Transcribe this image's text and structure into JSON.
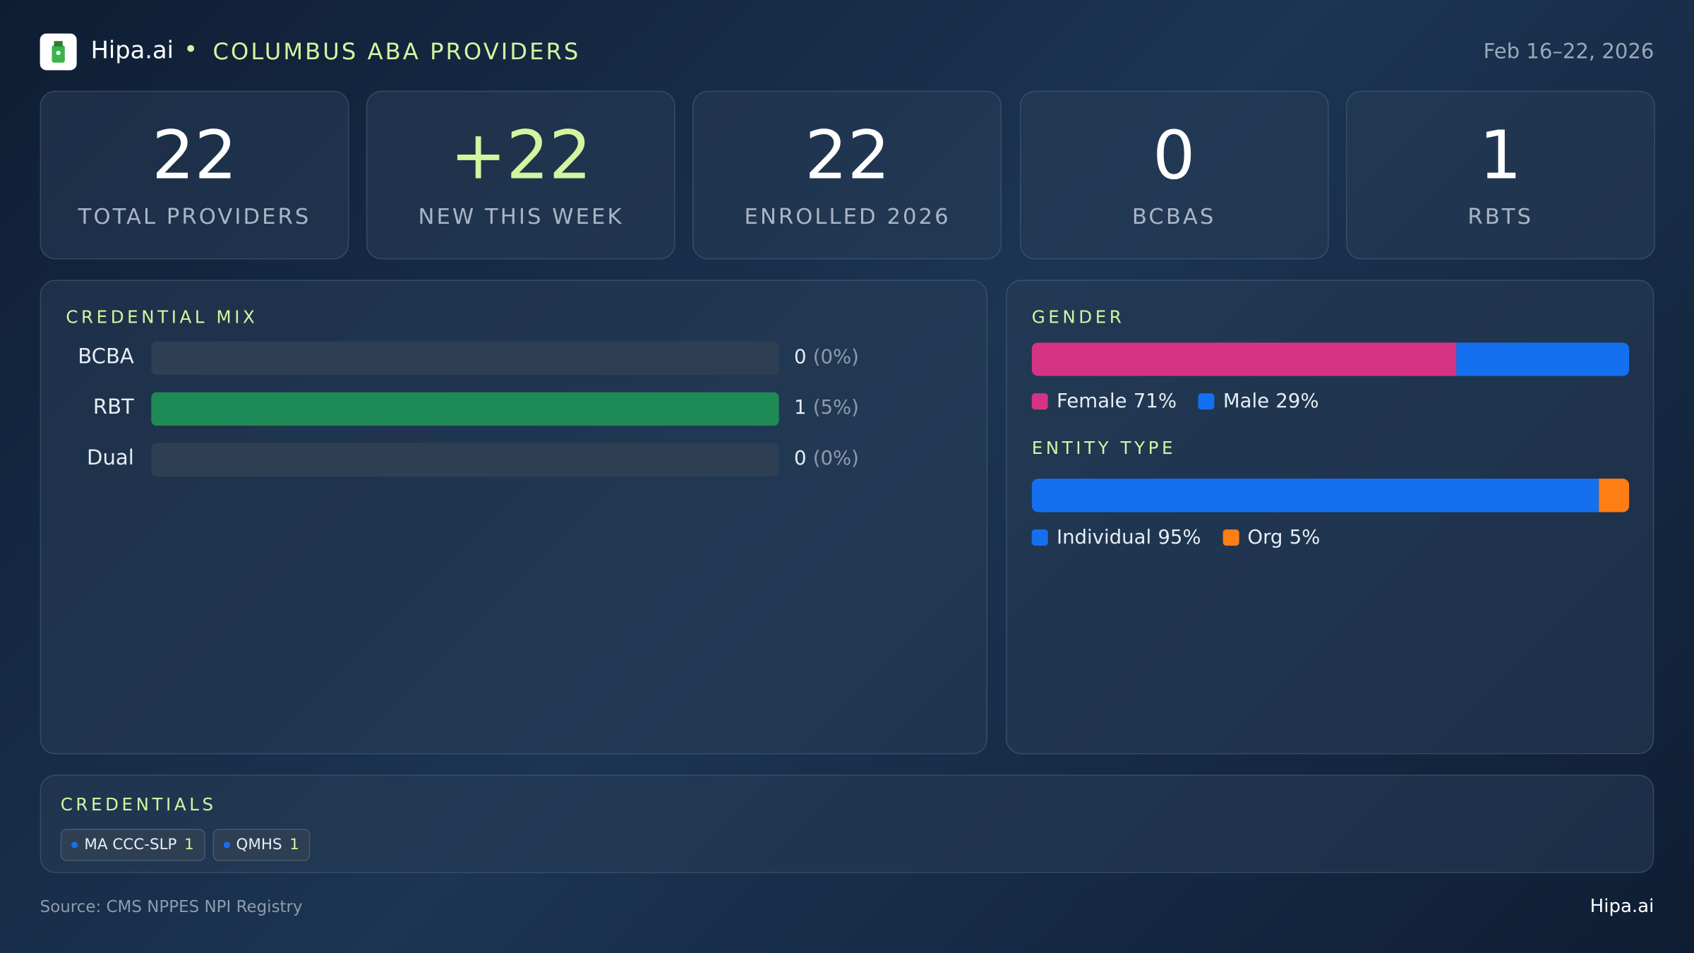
{
  "header": {
    "brand": "Hipa.ai",
    "title": "COLUMBUS ABA PROVIDERS",
    "date": "Feb 16–22, 2026"
  },
  "kpis": [
    {
      "value": "22",
      "label": "TOTAL PROVIDERS",
      "color": "#ffffff"
    },
    {
      "value": "+22",
      "label": "NEW THIS WEEK",
      "color": "#d4f5a0"
    },
    {
      "value": "22",
      "label": "ENROLLED 2026",
      "color": "#ffffff"
    },
    {
      "value": "0",
      "label": "BCBAS",
      "color": "#ffffff"
    },
    {
      "value": "1",
      "label": "RBTS",
      "color": "#ffffff"
    }
  ],
  "credential_mix": {
    "title": "CREDENTIAL MIX",
    "color": "#1e8a55",
    "rows": [
      {
        "label": "BCBA",
        "count": 0,
        "pct_label": "(0%)"
      },
      {
        "label": "RBT",
        "count": 1,
        "pct_label": "(5%)"
      },
      {
        "label": "Dual",
        "count": 0,
        "pct_label": "(0%)"
      }
    ]
  },
  "gender": {
    "title": "GENDER",
    "segments": [
      {
        "name": "Female",
        "value": 71,
        "label": "71%",
        "color": "#d63384"
      },
      {
        "name": "Male",
        "value": 29,
        "label": "29%",
        "color": "#1570ef"
      }
    ]
  },
  "entity_type": {
    "title": "ENTITY TYPE",
    "segments": [
      {
        "name": "Individual",
        "value": 95,
        "label": "95%",
        "color": "#1570ef"
      },
      {
        "name": "Org",
        "value": 5,
        "label": "5%",
        "color": "#fd7e14"
      }
    ]
  },
  "credentials": {
    "title": "CREDENTIALS",
    "items": [
      {
        "name": "MA CCC-SLP",
        "count": 1
      },
      {
        "name": "QMHS",
        "count": 1
      }
    ]
  },
  "footer": {
    "source": "Source: CMS NPPES NPI Registry",
    "brand": "Hipa.ai"
  }
}
